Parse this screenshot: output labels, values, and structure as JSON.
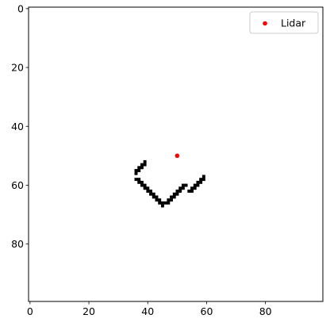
{
  "chart_data": {
    "type": "heatmap",
    "title": "",
    "xlabel": "",
    "ylabel": "",
    "xlim": [
      -0.5,
      99.5
    ],
    "ylim": [
      99.5,
      -0.5
    ],
    "grid": false,
    "x_ticks": [
      0,
      20,
      40,
      60,
      80
    ],
    "y_ticks": [
      0,
      20,
      40,
      60,
      80
    ],
    "occupancy_color": "#000000",
    "background_color": "#ffffff",
    "occupied_cells": [
      [
        39,
        52
      ],
      [
        39,
        53
      ],
      [
        38,
        53
      ],
      [
        38,
        54
      ],
      [
        37,
        54
      ],
      [
        36,
        55
      ],
      [
        37,
        55
      ],
      [
        36,
        56
      ],
      [
        36,
        58
      ],
      [
        37,
        58
      ],
      [
        37,
        59
      ],
      [
        38,
        59
      ],
      [
        38,
        60
      ],
      [
        39,
        60
      ],
      [
        39,
        61
      ],
      [
        40,
        61
      ],
      [
        40,
        62
      ],
      [
        41,
        62
      ],
      [
        41,
        63
      ],
      [
        42,
        63
      ],
      [
        42,
        64
      ],
      [
        43,
        64
      ],
      [
        43,
        65
      ],
      [
        44,
        65
      ],
      [
        44,
        66
      ],
      [
        45,
        66
      ],
      [
        45,
        67
      ],
      [
        46,
        66
      ],
      [
        47,
        66
      ],
      [
        47,
        65
      ],
      [
        48,
        65
      ],
      [
        48,
        64
      ],
      [
        49,
        64
      ],
      [
        49,
        63
      ],
      [
        50,
        63
      ],
      [
        50,
        62
      ],
      [
        51,
        62
      ],
      [
        51,
        61
      ],
      [
        52,
        61
      ],
      [
        52,
        60
      ],
      [
        53,
        60
      ],
      [
        55,
        62
      ],
      [
        54,
        62
      ],
      [
        55,
        61
      ],
      [
        56,
        61
      ],
      [
        56,
        60
      ],
      [
        57,
        60
      ],
      [
        57,
        59
      ],
      [
        58,
        59
      ],
      [
        58,
        58
      ],
      [
        59,
        58
      ],
      [
        59,
        57
      ]
    ],
    "series": [
      {
        "name": "Lidar",
        "type": "scatter",
        "color": "#ff0000",
        "points": [
          [
            50,
            50
          ]
        ]
      }
    ],
    "legend": {
      "position": "top-right",
      "entries": [
        "Lidar"
      ]
    }
  }
}
